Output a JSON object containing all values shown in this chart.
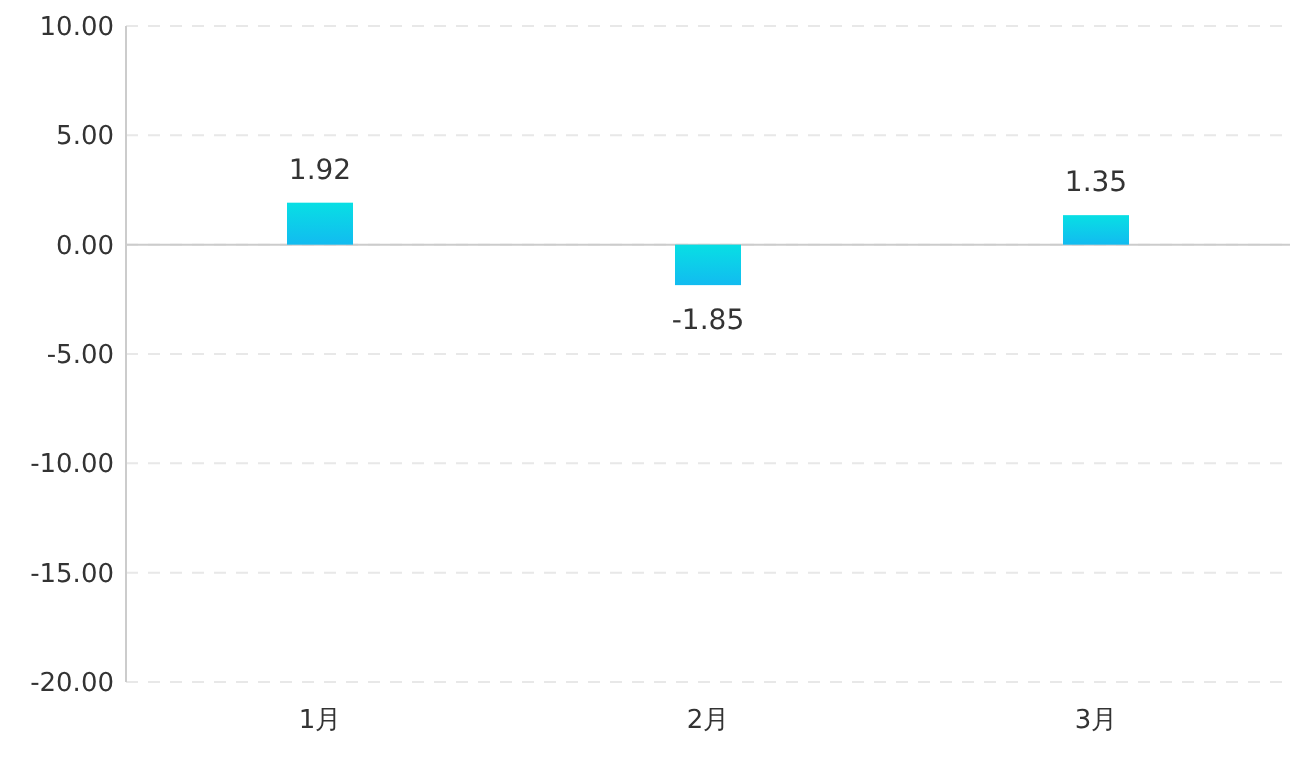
{
  "chart_data": {
    "type": "bar",
    "categories": [
      "1月",
      "2月",
      "3月"
    ],
    "series": [
      {
        "color": "#08dfe4",
        "values": [
          1.92,
          -1.85,
          1.35
        ]
      }
    ],
    "ylim": [
      -20,
      10
    ],
    "yticks": [
      {
        "value": -20,
        "label": "-20.00"
      },
      {
        "value": -15,
        "label": "-15.00"
      },
      {
        "value": -10,
        "label": "-10.00"
      },
      {
        "value": -5,
        "label": "-5.00"
      },
      {
        "value": 0,
        "label": "0.00"
      },
      {
        "value": 5,
        "label": "5.00"
      },
      {
        "value": 10,
        "label": "10.00"
      }
    ],
    "grid": "y",
    "data_labels": true
  }
}
